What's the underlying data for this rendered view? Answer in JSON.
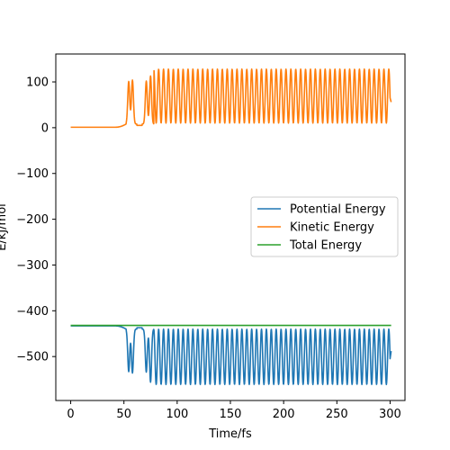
{
  "chart_data": {
    "type": "line",
    "title": "",
    "xlabel": "Time/fs",
    "ylabel": "E/kJ/mol",
    "xlim": [
      -14,
      314
    ],
    "ylim": [
      -596,
      161
    ],
    "xticks": [
      0,
      50,
      100,
      150,
      200,
      250,
      300
    ],
    "yticks": [
      100,
      0,
      -100,
      -200,
      -300,
      -400,
      -500
    ],
    "grid": false,
    "legend_position": "center-right",
    "series": [
      {
        "name": "Potential Energy",
        "color": "#1f77b4",
        "pattern": {
          "baseline": -433,
          "segments": [
            {
              "x0": 0,
              "x1": 42,
              "mode": "flat"
            },
            {
              "x0": 42,
              "x1": 52,
              "mode": "ramp_to",
              "value": -440
            },
            {
              "x0": 52,
              "x1": 62,
              "mode": "dips",
              "peaks": [
                {
                  "x": 54.5,
                  "y": -533
                },
                {
                  "x": 58,
                  "y": -536
                }
              ],
              "between": -440
            },
            {
              "x0": 62,
              "x1": 67,
              "mode": "flat",
              "value": -437
            },
            {
              "x0": 67,
              "x1": 78,
              "mode": "dips",
              "peaks": [
                {
                  "x": 71,
                  "y": -534
                },
                {
                  "x": 75,
                  "y": -556
                }
              ],
              "between": -440
            },
            {
              "x0": 78,
              "x1": 301,
              "mode": "oscillate",
              "period": 4.6,
              "top": -440,
              "bottom": -561
            }
          ],
          "end_value": -488
        }
      },
      {
        "name": "Kinetic Energy",
        "color": "#ff7f0e",
        "pattern": {
          "baseline": 1,
          "segments": [
            {
              "x0": 0,
              "x1": 42,
              "mode": "flat"
            },
            {
              "x0": 42,
              "x1": 52,
              "mode": "ramp_to",
              "value": 8
            },
            {
              "x0": 52,
              "x1": 62,
              "mode": "dips",
              "peaks": [
                {
                  "x": 54.5,
                  "y": 101
                },
                {
                  "x": 58,
                  "y": 104
                }
              ],
              "between": 8
            },
            {
              "x0": 62,
              "x1": 67,
              "mode": "flat",
              "value": 5
            },
            {
              "x0": 67,
              "x1": 78,
              "mode": "dips",
              "peaks": [
                {
                  "x": 71,
                  "y": 102
                },
                {
                  "x": 75,
                  "y": 113
                }
              ],
              "between": 8
            },
            {
              "x0": 78,
              "x1": 301,
              "mode": "oscillate",
              "period": 4.6,
              "top": 128,
              "bottom": 10
            }
          ],
          "end_value": 56
        }
      },
      {
        "name": "Total Energy",
        "color": "#2ca02c",
        "pattern": {
          "baseline": -432,
          "segments": [
            {
              "x0": 0,
              "x1": 301,
              "mode": "flat"
            }
          ],
          "end_value": -432
        }
      }
    ]
  }
}
